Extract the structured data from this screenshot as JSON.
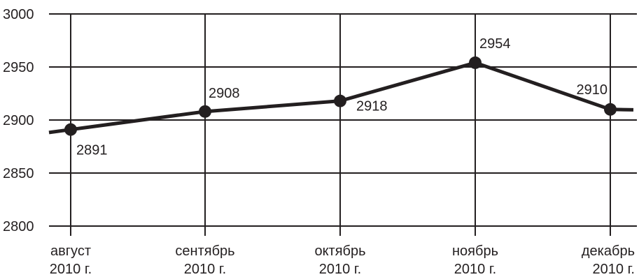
{
  "chart_data": {
    "type": "line",
    "categories": [
      [
        "август",
        "2010 г."
      ],
      [
        "сентябрь",
        "2010 г."
      ],
      [
        "октябрь",
        "2010 г."
      ],
      [
        "ноябрь",
        "2010 г."
      ],
      [
        "декабрь",
        "2010 г."
      ]
    ],
    "series": [
      {
        "values": [
          2891,
          2908,
          2918,
          2954,
          2910
        ]
      }
    ],
    "data_labels": [
      "2891",
      "2908",
      "2918",
      "2954",
      "2910"
    ],
    "y_ticks": [
      "2800",
      "2850",
      "2900",
      "2950",
      "3000"
    ],
    "ylim": [
      2800,
      3000
    ],
    "grid": true,
    "line_color": "#231f20"
  }
}
